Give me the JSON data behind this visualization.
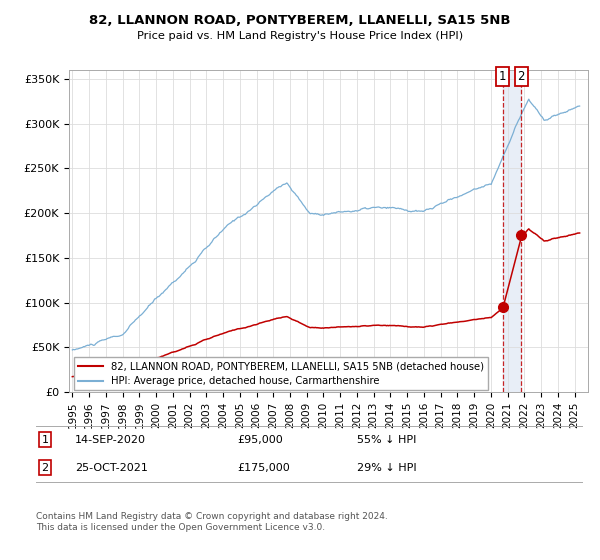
{
  "title": "82, LLANNON ROAD, PONTYBEREM, LLANELLI, SA15 5NB",
  "subtitle": "Price paid vs. HM Land Registry's House Price Index (HPI)",
  "ylim": [
    0,
    360000
  ],
  "yticks": [
    0,
    50000,
    100000,
    150000,
    200000,
    250000,
    300000,
    350000
  ],
  "ytick_labels": [
    "£0",
    "£50K",
    "£100K",
    "£150K",
    "£200K",
    "£250K",
    "£300K",
    "£350K"
  ],
  "hpi_color": "#7bafd4",
  "price_color": "#c00000",
  "point1_date": 2020.71,
  "point1_price": 95000,
  "point2_date": 2021.82,
  "point2_price": 175000,
  "legend1_label": "82, LLANNON ROAD, PONTYBEREM, LLANELLI, SA15 5NB (detached house)",
  "legend2_label": "HPI: Average price, detached house, Carmarthenshire",
  "footnote": "Contains HM Land Registry data © Crown copyright and database right 2024.\nThis data is licensed under the Open Government Licence v3.0.",
  "background_color": "#ffffff",
  "grid_color": "#dddddd",
  "shade_color": "#e8eef7"
}
